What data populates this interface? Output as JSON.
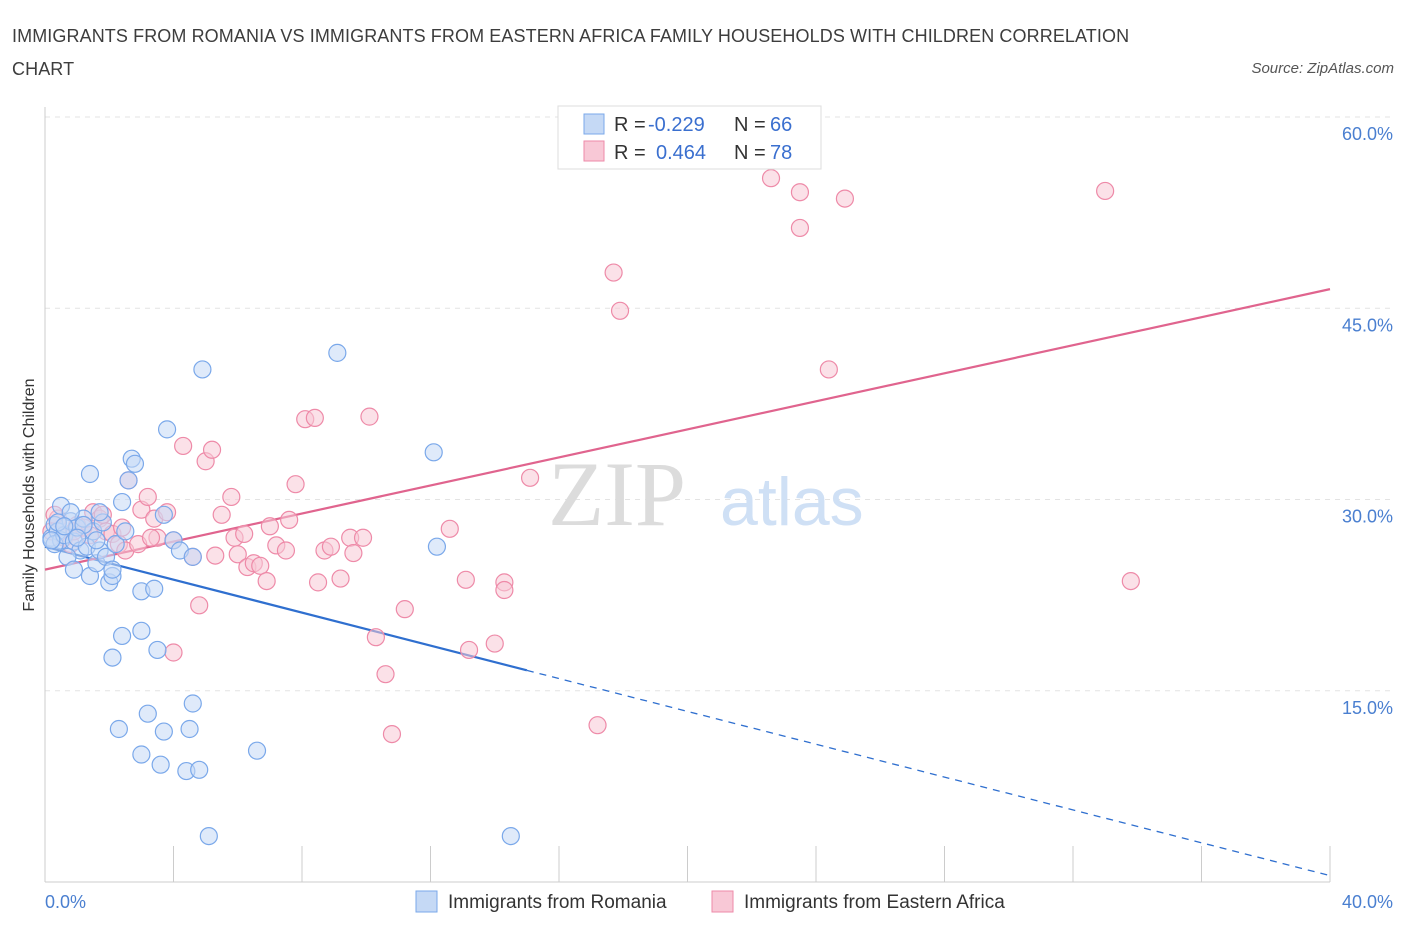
{
  "title": "IMMIGRANTS FROM ROMANIA VS IMMIGRANTS FROM EASTERN AFRICA FAMILY HOUSEHOLDS WITH CHILDREN CORRELATION CHART",
  "source": "Source: ZipAtlas.com",
  "watermark": {
    "zip": "ZIP",
    "atlas": "atlas"
  },
  "legend": {
    "rows": [
      {
        "r_label": "R = ",
        "r_value": "-0.229",
        "n_label": "N = ",
        "n_value": "66"
      },
      {
        "r_label": "R = ",
        "r_value": "0.464",
        "n_label": "N = ",
        "n_value": "78"
      }
    ]
  },
  "chart_data": {
    "type": "scatter",
    "title": "IMMIGRANTS FROM ROMANIA VS IMMIGRANTS FROM EASTERN AFRICA FAMILY HOUSEHOLDS WITH CHILDREN CORRELATION CHART",
    "xlabel": "",
    "ylabel": "Family Households with Children",
    "xlim": [
      0,
      40
    ],
    "ylim": [
      0,
      60
    ],
    "x_tick_labels": [
      "0.0%",
      "40.0%"
    ],
    "y_ticks": [
      {
        "value": 15,
        "label": "15.0%"
      },
      {
        "value": 30,
        "label": "30.0%"
      },
      {
        "value": 45,
        "label": "45.0%"
      },
      {
        "value": 60,
        "label": "60.0%"
      }
    ],
    "grid": true,
    "legend_position": "top-center",
    "series": [
      {
        "name": "Immigrants from Romania",
        "color": "#7aa8ea",
        "fill": "#c5d9f5",
        "r": -0.229,
        "n": 66,
        "trend": {
          "x0": 0,
          "y0": 26.3,
          "x1": 15,
          "y1": 16.6,
          "dash_to_x": 40,
          "dash_to_y": 0.5
        },
        "points": [
          [
            0.2,
            27.0
          ],
          [
            0.3,
            28.0
          ],
          [
            0.4,
            27.5
          ],
          [
            0.5,
            26.8
          ],
          [
            0.3,
            26.5
          ],
          [
            0.6,
            27.2
          ],
          [
            0.8,
            28.3
          ],
          [
            0.9,
            26.7
          ],
          [
            1.0,
            27.8
          ],
          [
            1.2,
            28.5
          ],
          [
            1.1,
            26.0
          ],
          [
            0.7,
            25.5
          ],
          [
            0.9,
            24.5
          ],
          [
            1.3,
            26.3
          ],
          [
            1.4,
            24.0
          ],
          [
            1.5,
            27.5
          ],
          [
            1.6,
            25.0
          ],
          [
            1.7,
            26.0
          ],
          [
            1.8,
            28.2
          ],
          [
            1.9,
            25.5
          ],
          [
            2.0,
            23.5
          ],
          [
            2.1,
            24.0
          ],
          [
            2.2,
            26.5
          ],
          [
            2.4,
            29.8
          ],
          [
            2.5,
            27.5
          ],
          [
            2.6,
            31.5
          ],
          [
            2.7,
            33.2
          ],
          [
            2.8,
            32.8
          ],
          [
            1.7,
            29.0
          ],
          [
            0.5,
            29.5
          ],
          [
            0.8,
            29.0
          ],
          [
            1.4,
            32.0
          ],
          [
            2.1,
            24.5
          ],
          [
            3.0,
            22.8
          ],
          [
            3.4,
            23.0
          ],
          [
            2.4,
            19.3
          ],
          [
            3.7,
            28.8
          ],
          [
            4.0,
            26.8
          ],
          [
            4.2,
            26.0
          ],
          [
            3.5,
            18.2
          ],
          [
            2.1,
            17.6
          ],
          [
            3.0,
            19.7
          ],
          [
            3.8,
            35.5
          ],
          [
            4.9,
            40.2
          ],
          [
            9.1,
            41.5
          ],
          [
            12.1,
            33.7
          ],
          [
            12.2,
            26.3
          ],
          [
            4.6,
            25.5
          ],
          [
            4.5,
            12.0
          ],
          [
            4.6,
            14.0
          ],
          [
            3.2,
            13.2
          ],
          [
            3.7,
            11.8
          ],
          [
            3.0,
            10.0
          ],
          [
            3.6,
            9.2
          ],
          [
            4.4,
            8.7
          ],
          [
            4.8,
            8.8
          ],
          [
            6.6,
            10.3
          ],
          [
            5.1,
            3.6
          ],
          [
            14.5,
            3.6
          ],
          [
            2.3,
            12.0
          ],
          [
            1.2,
            28.0
          ],
          [
            0.4,
            28.2
          ],
          [
            1.0,
            27.0
          ],
          [
            0.2,
            26.8
          ],
          [
            1.6,
            26.8
          ],
          [
            0.6,
            27.9
          ]
        ]
      },
      {
        "name": "Immigrants from Eastern Africa",
        "color": "#ee8aa8",
        "fill": "#f8c8d6",
        "r": 0.464,
        "n": 78,
        "trend": {
          "x0": 0,
          "y0": 24.5,
          "x1": 40,
          "y1": 46.5
        },
        "points": [
          [
            0.2,
            27.5
          ],
          [
            0.4,
            28.5
          ],
          [
            0.6,
            27.0
          ],
          [
            0.8,
            26.5
          ],
          [
            1.0,
            28.0
          ],
          [
            1.2,
            27.8
          ],
          [
            1.5,
            29.0
          ],
          [
            1.7,
            28.5
          ],
          [
            1.9,
            27.5
          ],
          [
            2.1,
            27.3
          ],
          [
            2.3,
            26.5
          ],
          [
            2.4,
            27.8
          ],
          [
            2.6,
            31.5
          ],
          [
            3.0,
            29.2
          ],
          [
            3.2,
            30.2
          ],
          [
            3.4,
            28.5
          ],
          [
            3.5,
            27.0
          ],
          [
            3.8,
            29.0
          ],
          [
            4.0,
            26.8
          ],
          [
            4.3,
            34.2
          ],
          [
            4.6,
            25.5
          ],
          [
            4.8,
            21.7
          ],
          [
            5.0,
            33.0
          ],
          [
            5.2,
            33.9
          ],
          [
            5.5,
            28.8
          ],
          [
            5.8,
            30.2
          ],
          [
            5.9,
            27.0
          ],
          [
            6.0,
            25.7
          ],
          [
            6.3,
            24.7
          ],
          [
            6.5,
            25.0
          ],
          [
            6.7,
            24.8
          ],
          [
            6.9,
            23.6
          ],
          [
            7.0,
            27.9
          ],
          [
            7.2,
            26.4
          ],
          [
            7.5,
            26.0
          ],
          [
            7.6,
            28.4
          ],
          [
            7.8,
            31.2
          ],
          [
            8.1,
            36.3
          ],
          [
            8.4,
            36.4
          ],
          [
            8.5,
            23.5
          ],
          [
            8.7,
            26.0
          ],
          [
            8.9,
            26.3
          ],
          [
            9.2,
            23.8
          ],
          [
            9.5,
            27.0
          ],
          [
            9.6,
            25.8
          ],
          [
            9.9,
            27.0
          ],
          [
            10.1,
            36.5
          ],
          [
            10.3,
            19.2
          ],
          [
            10.6,
            16.3
          ],
          [
            10.8,
            11.6
          ],
          [
            11.2,
            21.4
          ],
          [
            12.6,
            27.7
          ],
          [
            13.1,
            23.7
          ],
          [
            13.2,
            18.2
          ],
          [
            14.0,
            18.7
          ],
          [
            14.3,
            23.5
          ],
          [
            14.3,
            22.9
          ],
          [
            15.1,
            31.7
          ],
          [
            17.2,
            12.3
          ],
          [
            17.7,
            47.8
          ],
          [
            17.9,
            44.8
          ],
          [
            22.6,
            55.2
          ],
          [
            23.5,
            54.1
          ],
          [
            23.5,
            51.3
          ],
          [
            24.4,
            40.2
          ],
          [
            24.9,
            53.6
          ],
          [
            33.0,
            54.2
          ],
          [
            33.8,
            23.6
          ],
          [
            4.0,
            18.0
          ],
          [
            2.5,
            26.0
          ],
          [
            1.4,
            27.2
          ],
          [
            0.3,
            28.8
          ],
          [
            1.8,
            28.8
          ],
          [
            2.9,
            26.5
          ],
          [
            5.3,
            25.6
          ],
          [
            3.3,
            27.0
          ],
          [
            0.9,
            27.5
          ],
          [
            6.2,
            27.3
          ]
        ]
      }
    ]
  }
}
